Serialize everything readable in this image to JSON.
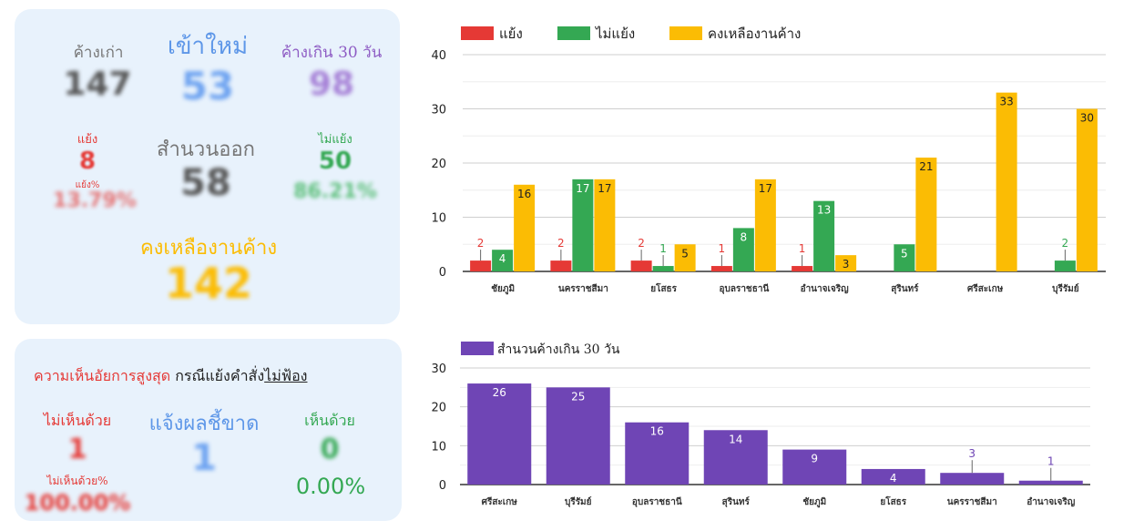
{
  "summary": {
    "old_pending": {
      "label": "ค้างเก่า",
      "value": "147"
    },
    "new_in": {
      "label": "เข้าใหม่",
      "value": "53"
    },
    "over30": {
      "label": "ค้างเกิน 30 วัน",
      "value": "98"
    },
    "oppose": {
      "label": "แย้ง",
      "value": "8",
      "pct_label": "แย้ง%",
      "pct": "13.79%"
    },
    "files_out": {
      "label": "สำนวนออก",
      "value": "58"
    },
    "no_oppose": {
      "label": "ไม่แย้ง",
      "value": "50",
      "pct": "86.21%"
    },
    "remaining": {
      "label": "คงเหลืองานค้าง",
      "value": "142"
    }
  },
  "opinion": {
    "title_red": "ความเห็นอัยการสูงสุด",
    "title_rest": " กรณีแย้งคำสั่ง",
    "title_underline": "ไม่ฟ้อง",
    "disagree": {
      "label": "ไม่เห็นด้วย",
      "value": "1",
      "pct_label": "ไม่เห็นด้วย%",
      "pct": "100.00%"
    },
    "final": {
      "label": "แจ้งผลชี้ขาด",
      "value": "1"
    },
    "agree": {
      "label": "เห็นด้วย",
      "value": "0",
      "pct": "0.00%"
    }
  },
  "colors": {
    "red": "#e53935",
    "green": "#34a853",
    "yellow": "#fbbc04",
    "purple": "#6f45b5",
    "blue": "#8ab4f8"
  },
  "chart_data": [
    {
      "type": "bar",
      "categories": [
        "ชัยภูมิ",
        "นครราชสีมา",
        "ยโสธร",
        "อุบลราชธานี",
        "อำนาจเจริญ",
        "สุรินทร์",
        "ศรีสะเกษ",
        "บุรีรัมย์"
      ],
      "series": [
        {
          "name": "แย้ง",
          "values": [
            2,
            2,
            2,
            1,
            1,
            null,
            null,
            null
          ]
        },
        {
          "name": "ไม่แย้ง",
          "values": [
            4,
            17,
            1,
            8,
            13,
            5,
            null,
            2
          ]
        },
        {
          "name": "คงเหลืองานค้าง",
          "values": [
            16,
            17,
            5,
            17,
            3,
            21,
            33,
            30
          ]
        }
      ],
      "ylim": [
        0,
        40
      ],
      "yticks": [
        0,
        10,
        20,
        30,
        40
      ],
      "legend": "top-left",
      "grid": true
    },
    {
      "type": "bar",
      "categories": [
        "ศรีสะเกษ",
        "บุรีรัมย์",
        "อุบลราชธานี",
        "สุรินทร์",
        "ชัยภูมิ",
        "ยโสธร",
        "นครราชสีมา",
        "อำนาจเจริญ"
      ],
      "series": [
        {
          "name": "สำนวนค้างเกิน 30 วัน",
          "values": [
            26,
            25,
            16,
            14,
            9,
            4,
            3,
            1
          ]
        }
      ],
      "ylim": [
        0,
        30
      ],
      "yticks": [
        0,
        10,
        20,
        30
      ],
      "legend": "top-left",
      "grid": true
    }
  ]
}
